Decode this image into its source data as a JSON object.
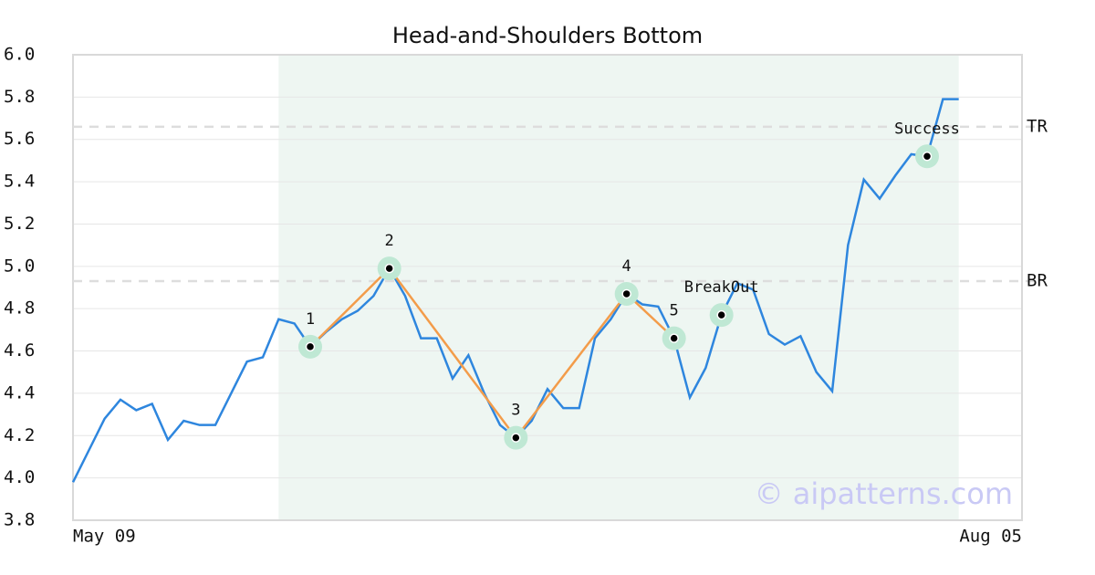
{
  "chart_data": {
    "type": "line",
    "title": "Head-and-Shoulders Bottom",
    "x": [
      0,
      1,
      2,
      3,
      4,
      5,
      6,
      7,
      8,
      9,
      10,
      11,
      12,
      13,
      14,
      15,
      16,
      17,
      18,
      19,
      20,
      21,
      22,
      23,
      24,
      25,
      26,
      27,
      28,
      29,
      30,
      31,
      32,
      33,
      34,
      35,
      36,
      37,
      38,
      39,
      40,
      41,
      42,
      43,
      44,
      45,
      46,
      47,
      48,
      49,
      50,
      51,
      52,
      53,
      54,
      55,
      56
    ],
    "values": [
      3.98,
      4.13,
      4.28,
      4.37,
      4.32,
      4.35,
      4.18,
      4.27,
      4.25,
      4.25,
      4.4,
      4.55,
      4.57,
      4.75,
      4.73,
      4.62,
      4.69,
      4.75,
      4.79,
      4.86,
      4.99,
      4.86,
      4.66,
      4.66,
      4.47,
      4.58,
      4.4,
      4.25,
      4.19,
      4.27,
      4.42,
      4.33,
      4.33,
      4.66,
      4.75,
      4.87,
      4.82,
      4.81,
      4.66,
      4.38,
      4.52,
      4.77,
      4.92,
      4.89,
      4.68,
      4.63,
      4.67,
      4.5,
      4.41,
      5.1,
      5.41,
      5.32,
      5.43,
      5.53,
      5.52,
      5.79,
      5.79
    ],
    "color": "#2e86de",
    "xlim": [
      0,
      60
    ],
    "xticks": [
      {
        "value": 0,
        "label": "May 09"
      },
      {
        "value": 60,
        "label": "Aug 05"
      }
    ],
    "ylim": [
      3.8,
      6.0
    ],
    "yticks": [
      {
        "value": 3.8,
        "label": "3.8"
      },
      {
        "value": 4.0,
        "label": "4.0"
      },
      {
        "value": 4.2,
        "label": "4.2"
      },
      {
        "value": 4.4,
        "label": "4.4"
      },
      {
        "value": 4.6,
        "label": "4.6"
      },
      {
        "value": 4.8,
        "label": "4.8"
      },
      {
        "value": 5.0,
        "label": "5.0"
      },
      {
        "value": 5.2,
        "label": "5.2"
      },
      {
        "value": 5.4,
        "label": "5.4"
      },
      {
        "value": 5.6,
        "label": "5.6"
      },
      {
        "value": 5.8,
        "label": "5.8"
      },
      {
        "value": 6.0,
        "label": "6.0"
      }
    ],
    "grid": true,
    "highlight_range": [
      13,
      56
    ],
    "pattern": {
      "labels": [
        "1",
        "2",
        "3",
        "4",
        "5"
      ],
      "x": [
        15,
        20,
        28,
        35,
        38
      ],
      "values": [
        4.62,
        4.99,
        4.19,
        4.87,
        4.66
      ],
      "color": "#f39c4a"
    },
    "markers": [
      {
        "label": "BreakOut",
        "x": 41,
        "value": 4.77
      },
      {
        "label": "Success",
        "x": 54,
        "value": 5.52
      }
    ],
    "hlines": [
      {
        "label": "TR",
        "value": 5.66
      },
      {
        "label": "BR",
        "value": 4.93
      }
    ],
    "watermark": "© aipatterns.com"
  }
}
